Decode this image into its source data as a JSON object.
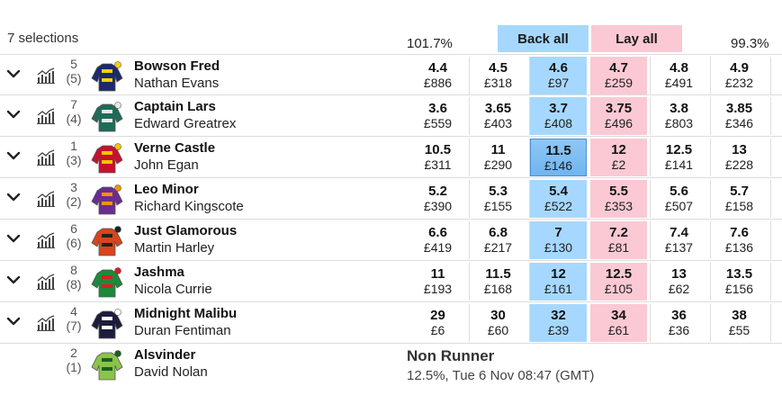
{
  "header": {
    "selections_count": "7 selections",
    "back_overround": "101.7%",
    "lay_overround": "99.3%",
    "back_all_label": "Back all",
    "lay_all_label": "Lay all"
  },
  "runners": [
    {
      "number": "5",
      "draw": "(5)",
      "horse": "Bowson Fred",
      "jockey": "Nathan Evans",
      "prices": [
        {
          "odds": "4.4",
          "stake": "£886"
        },
        {
          "odds": "4.5",
          "stake": "£318"
        },
        {
          "odds": "4.6",
          "stake": "£97"
        },
        {
          "odds": "4.7",
          "stake": "£259"
        },
        {
          "odds": "4.8",
          "stake": "£491"
        },
        {
          "odds": "4.9",
          "stake": "£232"
        }
      ],
      "silk_colors": [
        "#1a2a6c",
        "#f2d500"
      ]
    },
    {
      "number": "7",
      "draw": "(4)",
      "horse": "Captain Lars",
      "jockey": "Edward Greatrex",
      "prices": [
        {
          "odds": "3.6",
          "stake": "£559"
        },
        {
          "odds": "3.65",
          "stake": "£403"
        },
        {
          "odds": "3.7",
          "stake": "£408"
        },
        {
          "odds": "3.75",
          "stake": "£496"
        },
        {
          "odds": "3.8",
          "stake": "£803"
        },
        {
          "odds": "3.85",
          "stake": "£346"
        }
      ],
      "silk_colors": [
        "#1f6b5a",
        "#e8e8e8"
      ]
    },
    {
      "number": "1",
      "draw": "(3)",
      "horse": "Verne Castle",
      "jockey": "John Egan",
      "prices": [
        {
          "odds": "10.5",
          "stake": "£311"
        },
        {
          "odds": "11",
          "stake": "£290"
        },
        {
          "odds": "11.5",
          "stake": "£146"
        },
        {
          "odds": "12",
          "stake": "£2"
        },
        {
          "odds": "12.5",
          "stake": "£141"
        },
        {
          "odds": "13",
          "stake": "£228"
        }
      ],
      "silk_colors": [
        "#c8102e",
        "#f5c400"
      ]
    },
    {
      "number": "3",
      "draw": "(2)",
      "horse": "Leo Minor",
      "jockey": "Richard Kingscote",
      "prices": [
        {
          "odds": "5.2",
          "stake": "£390"
        },
        {
          "odds": "5.3",
          "stake": "£155"
        },
        {
          "odds": "5.4",
          "stake": "£522"
        },
        {
          "odds": "5.5",
          "stake": "£353"
        },
        {
          "odds": "5.6",
          "stake": "£507"
        },
        {
          "odds": "5.7",
          "stake": "£158"
        }
      ],
      "silk_colors": [
        "#6a2c91",
        "#f39200"
      ]
    },
    {
      "number": "6",
      "draw": "(6)",
      "horse": "Just Glamorous",
      "jockey": "Martin Harley",
      "prices": [
        {
          "odds": "6.6",
          "stake": "£419"
        },
        {
          "odds": "6.8",
          "stake": "£217"
        },
        {
          "odds": "7",
          "stake": "£130"
        },
        {
          "odds": "7.2",
          "stake": "£81"
        },
        {
          "odds": "7.4",
          "stake": "£137"
        },
        {
          "odds": "7.6",
          "stake": "£136"
        }
      ],
      "silk_colors": [
        "#d9441c",
        "#222222"
      ]
    },
    {
      "number": "8",
      "draw": "(8)",
      "horse": "Jashma",
      "jockey": "Nicola Currie",
      "prices": [
        {
          "odds": "11",
          "stake": "£193"
        },
        {
          "odds": "11.5",
          "stake": "£168"
        },
        {
          "odds": "12",
          "stake": "£161"
        },
        {
          "odds": "12.5",
          "stake": "£105"
        },
        {
          "odds": "13",
          "stake": "£62"
        },
        {
          "odds": "13.5",
          "stake": "£156"
        }
      ],
      "silk_colors": [
        "#1b8a3a",
        "#d62020"
      ]
    },
    {
      "number": "4",
      "draw": "(7)",
      "horse": "Midnight Malibu",
      "jockey": "Duran Fentiman",
      "prices": [
        {
          "odds": "29",
          "stake": "£6"
        },
        {
          "odds": "30",
          "stake": "£60"
        },
        {
          "odds": "32",
          "stake": "£39"
        },
        {
          "odds": "34",
          "stake": "£61"
        },
        {
          "odds": "36",
          "stake": "£36"
        },
        {
          "odds": "38",
          "stake": "£55"
        }
      ],
      "silk_colors": [
        "#1c1c3c",
        "#ffffff"
      ]
    }
  ],
  "non_runner": {
    "number": "2",
    "draw": "(1)",
    "horse": "Alsvinder",
    "jockey": "David Nolan",
    "status": "Non Runner",
    "info": "12.5%, Tue 6 Nov 08:47 (GMT)",
    "silk_colors": [
      "#8bc34a",
      "#1b5e20"
    ]
  },
  "selected_price": {
    "runner": 2,
    "column": 2
  },
  "colors": {
    "back": "#a6d8ff",
    "lay": "#fac9d4"
  }
}
